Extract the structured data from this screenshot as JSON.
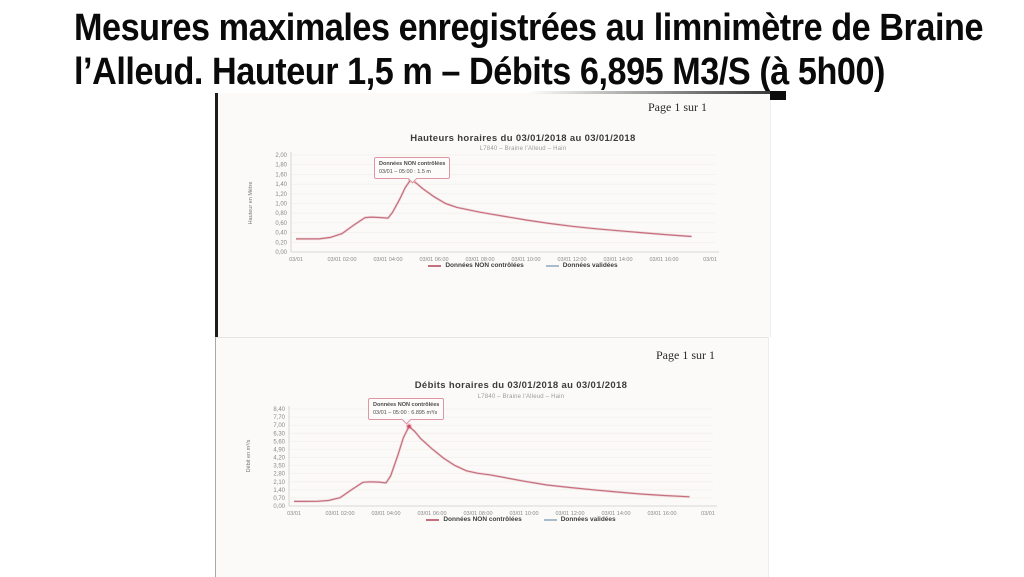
{
  "slide": {
    "title_lines": [
      "Mesures maximales enregistrées au limnimètre de Braine",
      "l’Alleud. Hauteur 1,5 m – Débits 6,895 M3/S (à 5h00)"
    ]
  },
  "colors": {
    "series_uncontrolled": "#c66f7e",
    "series_validated": "#a8bdcb",
    "annotation_border": "#dd96a2",
    "peak_marker": "#c84f66"
  },
  "chart_data": [
    {
      "type": "line",
      "page_label": "Page 1 sur 1",
      "title": "Hauteurs horaires du 03/01/2018 au 03/01/2018",
      "subtitle": "L7840 – Braine l'Alleud – Hain",
      "ylabel": "Hauteur en Mètre",
      "ylim": [
        0,
        2.0
      ],
      "ytick_labels": [
        "2,00",
        "1,80",
        "1,60",
        "1,40",
        "1,20",
        "1,00",
        "0,80",
        "0,60",
        "0,40",
        "0,20",
        "0,00"
      ],
      "xlim_hours": [
        0,
        18
      ],
      "xtick_labels": [
        "03/01",
        "03/01 02:00",
        "03/01 04:00",
        "03/01 06:00",
        "03/01 08:00",
        "03/01 10:00",
        "03/01 12:00",
        "03/01 14:00",
        "03/01 16:00",
        "03/01"
      ],
      "grid": "horizontal-faint",
      "legend_position": "bottom-center",
      "series": [
        {
          "name": "Données NON contrôlées",
          "color": "#c66f7e",
          "x": [
            0,
            0.5,
            1,
            1.5,
            2,
            2.5,
            3,
            3.3,
            3.7,
            4,
            4.2,
            4.5,
            4.75,
            5,
            5.25,
            5.5,
            6,
            6.5,
            7,
            7.5,
            8,
            8.5,
            9,
            10,
            11,
            12,
            13,
            14,
            15,
            16,
            17.2
          ],
          "y": [
            0.27,
            0.27,
            0.27,
            0.3,
            0.38,
            0.55,
            0.71,
            0.72,
            0.71,
            0.7,
            0.82,
            1.08,
            1.33,
            1.5,
            1.41,
            1.31,
            1.14,
            1.0,
            0.92,
            0.87,
            0.82,
            0.78,
            0.74,
            0.66,
            0.59,
            0.53,
            0.48,
            0.44,
            0.4,
            0.36,
            0.32
          ]
        },
        {
          "name": "Données validées",
          "color": "#a8bdcb",
          "x": [],
          "y": []
        }
      ],
      "peak": {
        "x": 5,
        "y": 1.5,
        "label_line1": "Données NON contrôlées",
        "label_line2": "03/01 – 05:00 : 1.5 m"
      }
    },
    {
      "type": "line",
      "page_label": "Page 1 sur 1",
      "title": "Débits horaires du 03/01/2018 au 03/01/2018",
      "subtitle": "L7840 – Braine l'Alleud – Hain",
      "ylabel": "Débit en m³/s",
      "ylim": [
        0,
        8.4
      ],
      "ytick_labels": [
        "8,40",
        "7,70",
        "7,00",
        "6,30",
        "5,60",
        "4,90",
        "4,20",
        "3,50",
        "2,80",
        "2,10",
        "1,40",
        "0,70",
        "0,00"
      ],
      "xlim_hours": [
        0,
        18
      ],
      "xtick_labels": [
        "03/01",
        "03/01 02:00",
        "03/01 04:00",
        "03/01 06:00",
        "03/01 08:00",
        "03/01 10:00",
        "03/01 12:00",
        "03/01 14:00",
        "03/01 16:00",
        "03/01"
      ],
      "grid": "horizontal-faint",
      "legend_position": "bottom-center",
      "series": [
        {
          "name": "Données NON contrôlées",
          "color": "#c66f7e",
          "x": [
            0,
            0.5,
            1,
            1.5,
            2,
            2.5,
            3,
            3.3,
            3.7,
            4,
            4.2,
            4.5,
            4.75,
            5,
            5.25,
            5.5,
            6,
            6.5,
            7,
            7.5,
            8,
            8.5,
            9,
            10,
            11,
            12,
            13,
            14,
            15,
            16,
            17.2
          ],
          "y": [
            0.4,
            0.4,
            0.41,
            0.48,
            0.72,
            1.4,
            2.05,
            2.1,
            2.07,
            2.0,
            2.6,
            4.3,
            5.9,
            6.895,
            6.45,
            5.85,
            4.95,
            4.15,
            3.5,
            3.05,
            2.83,
            2.7,
            2.52,
            2.15,
            1.82,
            1.6,
            1.4,
            1.22,
            1.05,
            0.92,
            0.8
          ]
        },
        {
          "name": "Données validées",
          "color": "#a8bdcb",
          "x": [],
          "y": []
        }
      ],
      "peak": {
        "x": 5,
        "y": 6.895,
        "label_line1": "Données NON contrôlées",
        "label_line2": "03/01 – 05:00 : 6.895 m³/s"
      }
    }
  ]
}
